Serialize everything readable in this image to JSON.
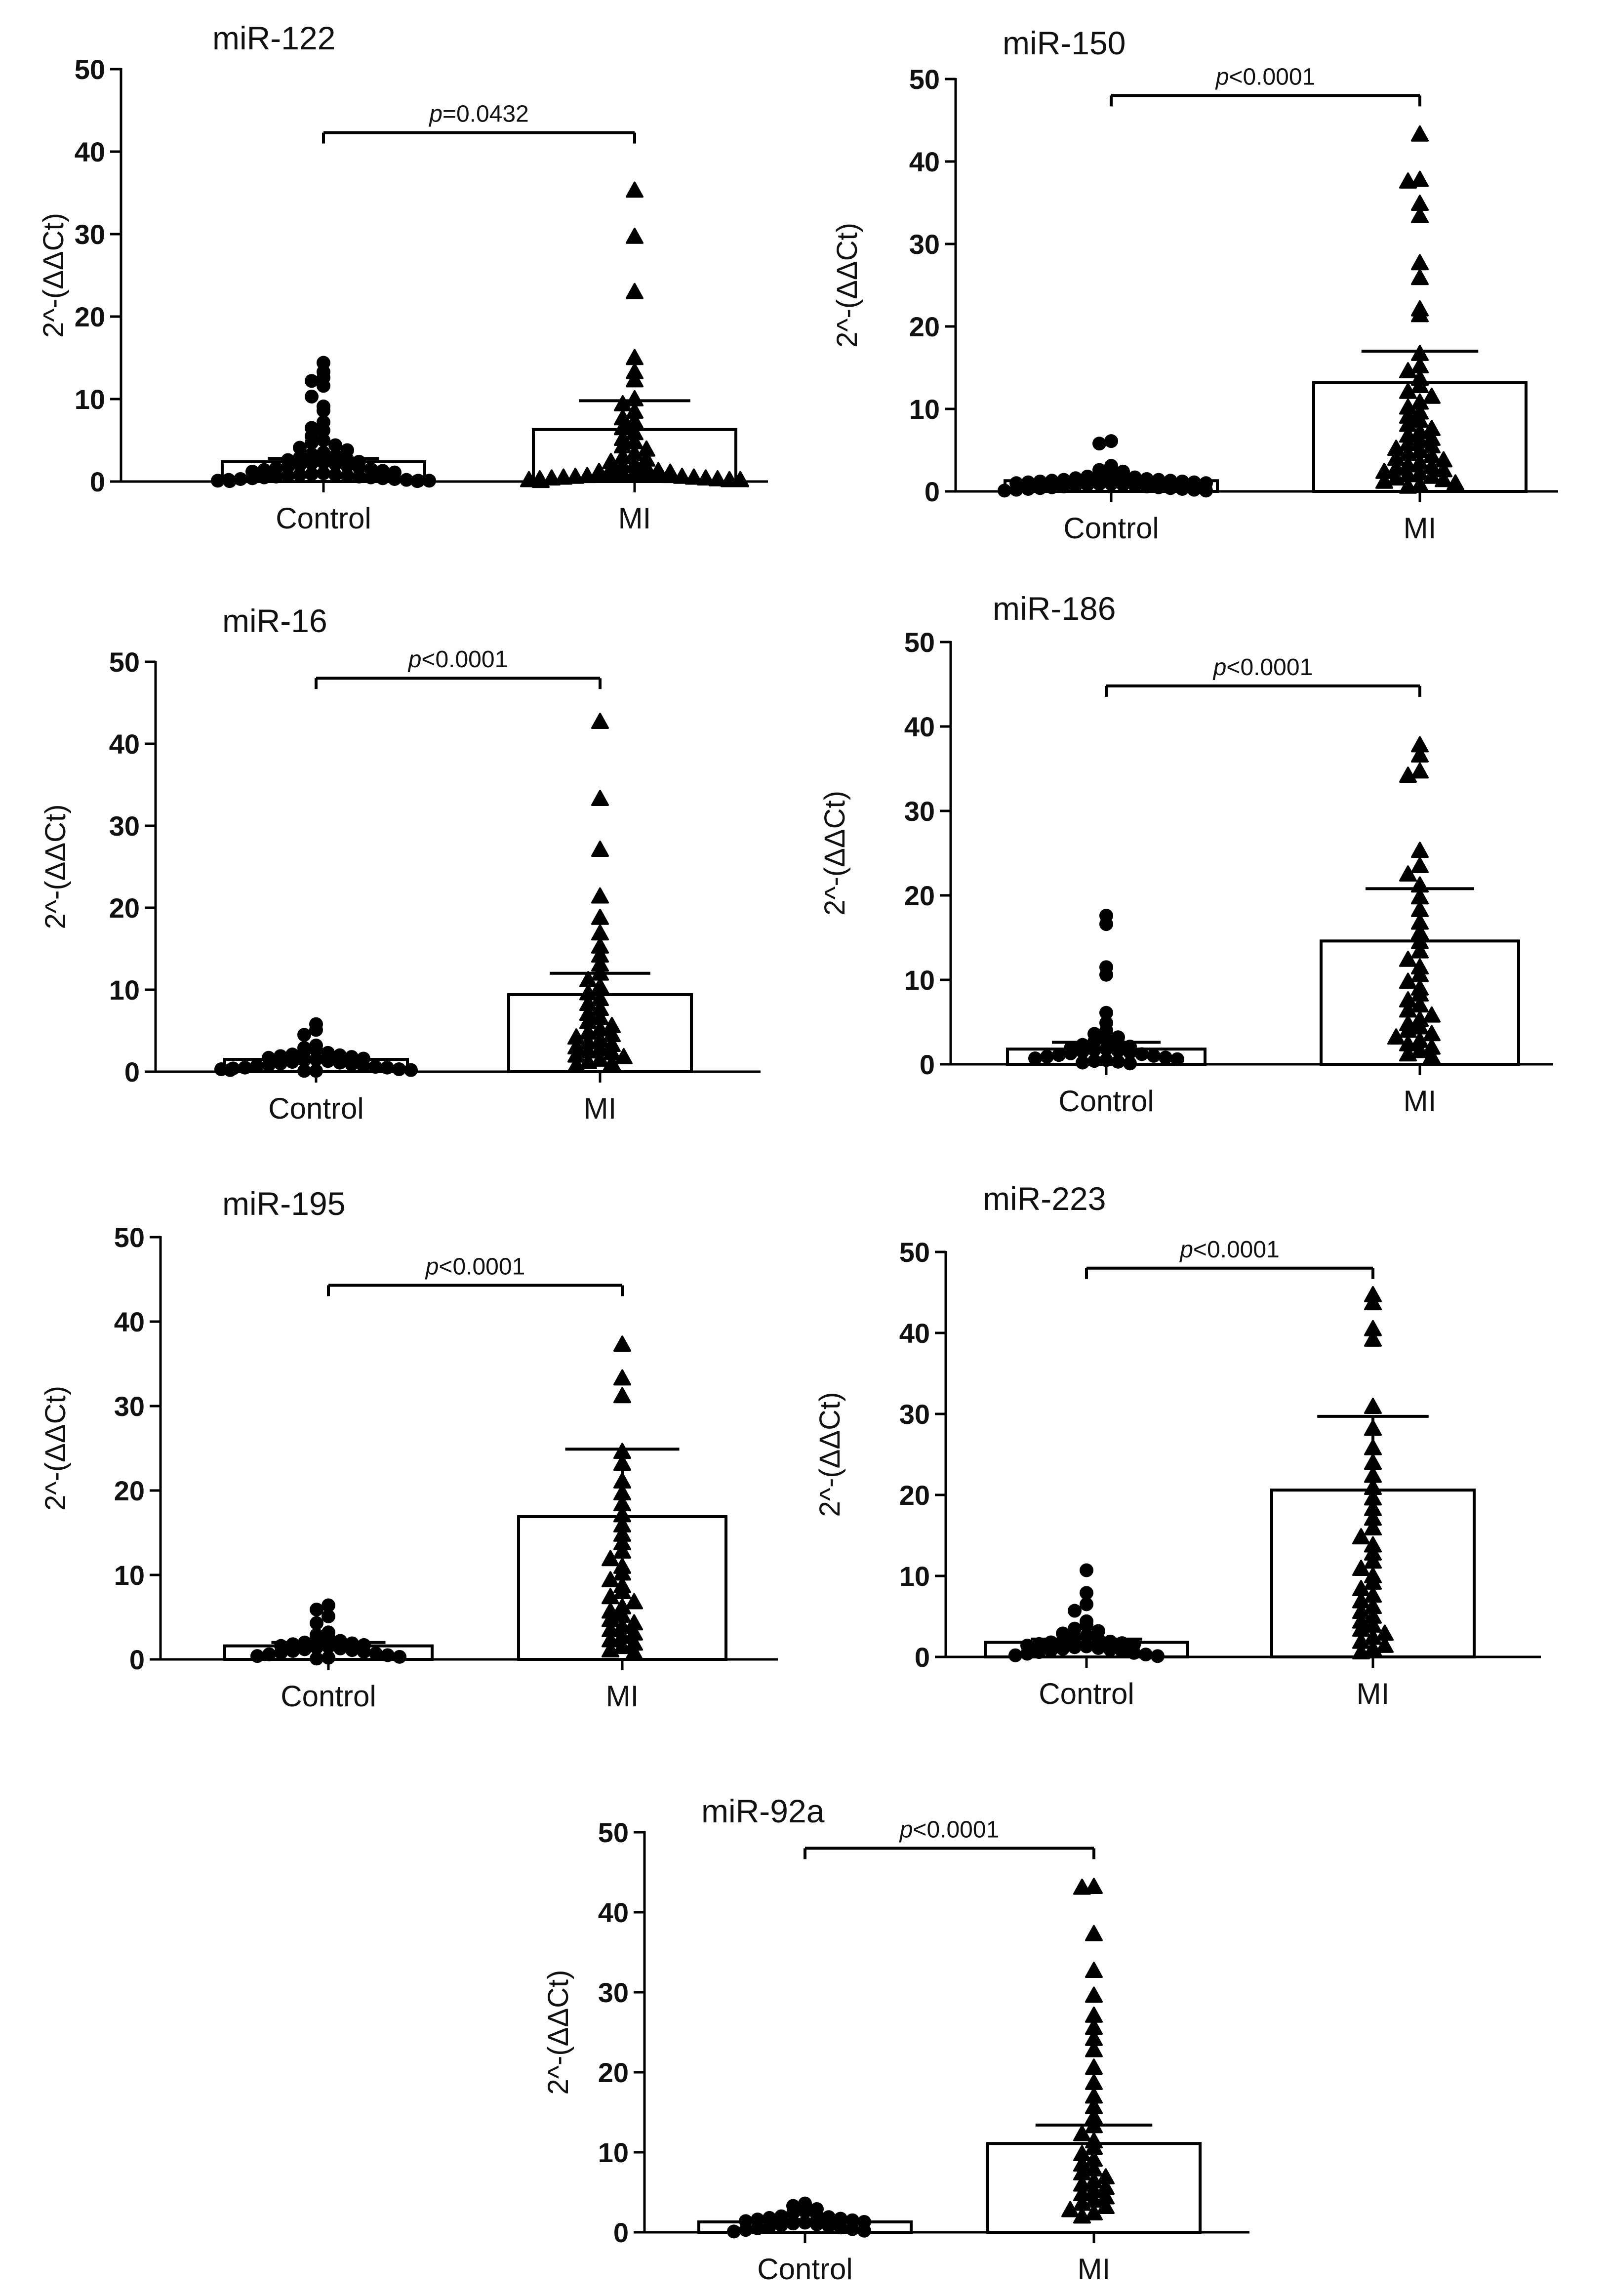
{
  "chart_data": [
    {
      "type": "bar",
      "title": "miR-122",
      "ylabel": "2^-(ΔΔCt)",
      "ylim": [
        0,
        50
      ],
      "yticks": [
        "0",
        "10",
        "20",
        "30",
        "40",
        "50"
      ],
      "categories": [
        "Control",
        "MI"
      ],
      "values": [
        2.4,
        6.3
      ],
      "errors": [
        0.4,
        3.5
      ],
      "p_label": "p",
      "p_value": "=0.0432",
      "points": [
        [
          14.4,
          13.3,
          12.6,
          12.2,
          11.6,
          10.3,
          9.1,
          8.6,
          7.2,
          6.5,
          6.2,
          5.5,
          5.0,
          4.7,
          4.4,
          4.1,
          3.8,
          3.5,
          3.3,
          3.1,
          2.9,
          2.7,
          2.6,
          2.4,
          2.3,
          2.2,
          2.1,
          2.0,
          1.9,
          1.8,
          1.7,
          1.6,
          1.5,
          1.4,
          1.3,
          1.2,
          1.1,
          1.0,
          0.9,
          0.8,
          0.8,
          0.7,
          0.7,
          0.6,
          0.6,
          0.5,
          0.5,
          0.4,
          0.4,
          0.3,
          0.3,
          0.2,
          0.2,
          0.1,
          0.1,
          0.1,
          0.05,
          0.05
        ],
        [
          35.3,
          29.7,
          23.0,
          15.0,
          13.3,
          12.3,
          10.0,
          9.4,
          8.5,
          7.7,
          7.3,
          6.5,
          5.9,
          5.2,
          4.8,
          4.3,
          3.9,
          3.4,
          3.0,
          2.7,
          2.4,
          2.1,
          1.9,
          1.7,
          1.5,
          1.3,
          1.2,
          1.1,
          1.0,
          1.0,
          0.9,
          0.9,
          0.8,
          0.8,
          0.7,
          0.7,
          0.6,
          0.6,
          0.5,
          0.5,
          0.4,
          0.4,
          0.3,
          0.3,
          0.2,
          0.2,
          0.2,
          0.1
        ]
      ]
    },
    {
      "type": "bar",
      "title": "miR-150",
      "ylabel": "2^-(ΔΔCt)",
      "ylim": [
        0,
        50
      ],
      "yticks": [
        "0",
        "10",
        "20",
        "30",
        "40",
        "50"
      ],
      "categories": [
        "Control",
        "MI"
      ],
      "values": [
        1.3,
        13.2
      ],
      "errors": [
        0.3,
        3.8
      ],
      "p_label": "p",
      "p_value": "<0.0001",
      "points": [
        [
          6.1,
          5.8,
          3.1,
          2.6,
          2.4,
          2.2,
          2.0,
          1.9,
          1.8,
          1.7,
          1.6,
          1.5,
          1.4,
          1.4,
          1.3,
          1.3,
          1.2,
          1.2,
          1.1,
          1.1,
          1.0,
          1.0,
          0.9,
          0.9,
          0.8,
          0.8,
          0.7,
          0.7,
          0.6,
          0.6,
          0.5,
          0.5,
          0.4,
          0.4,
          0.3,
          0.3,
          0.2,
          0.2,
          0.1,
          0.1
        ],
        [
          43.3,
          37.8,
          37.6,
          34.9,
          33.4,
          27.7,
          25.9,
          22.1,
          21.4,
          16.7,
          15.2,
          14.6,
          13.7,
          12.8,
          12.1,
          11.5,
          10.8,
          10.2,
          9.6,
          9.1,
          8.6,
          8.1,
          7.6,
          7.2,
          6.8,
          6.4,
          6.1,
          5.8,
          5.5,
          5.2,
          4.9,
          4.6,
          4.3,
          4.0,
          3.8,
          3.5,
          3.2,
          3.0,
          2.8,
          2.6,
          2.4,
          2.2,
          2.0,
          1.8,
          1.6,
          1.4,
          1.2,
          1.0,
          0.8,
          0.6
        ]
      ]
    },
    {
      "type": "bar",
      "title": "miR-16",
      "ylabel": "2^-(ΔΔCt)",
      "ylim": [
        0,
        50
      ],
      "yticks": [
        "0",
        "10",
        "20",
        "30",
        "40",
        "50"
      ],
      "categories": [
        "Control",
        "MI"
      ],
      "values": [
        1.5,
        9.4
      ],
      "errors": [
        0.3,
        2.6
      ],
      "p_label": "p",
      "p_value": "<0.0001",
      "points": [
        [
          5.8,
          5.1,
          4.5,
          3.2,
          2.9,
          2.7,
          2.5,
          2.3,
          2.1,
          2.0,
          1.9,
          1.8,
          1.7,
          1.6,
          1.5,
          1.4,
          1.3,
          1.2,
          1.1,
          1.0,
          0.9,
          0.8,
          0.7,
          0.7,
          0.6,
          0.5,
          0.5,
          0.4,
          0.3,
          0.3,
          0.2,
          0.2,
          0.1,
          0.1
        ],
        [
          42.7,
          33.3,
          27.1,
          21.4,
          18.8,
          16.9,
          15.3,
          14.2,
          13.1,
          12.0,
          11.2,
          10.4,
          9.6,
          8.9,
          8.3,
          7.7,
          7.1,
          6.6,
          6.1,
          5.6,
          5.2,
          4.8,
          4.5,
          4.2,
          3.9,
          3.6,
          3.3,
          3.0,
          2.8,
          2.5,
          2.3,
          2.0,
          1.8,
          1.5,
          1.2,
          1.0,
          0.8
        ]
      ]
    },
    {
      "type": "bar",
      "title": "miR-186",
      "ylabel": "2^-(ΔΔCt)",
      "ylim": [
        0,
        50
      ],
      "yticks": [
        "0",
        "10",
        "20",
        "30",
        "40",
        "50"
      ],
      "categories": [
        "Control",
        "MI"
      ],
      "values": [
        1.8,
        14.6
      ],
      "errors": [
        0.8,
        6.2
      ],
      "p_label": "p",
      "p_value": "<0.0001",
      "points": [
        [
          17.6,
          16.6,
          11.5,
          10.6,
          6.1,
          4.9,
          4.0,
          3.6,
          3.2,
          2.9,
          2.7,
          2.5,
          2.3,
          2.1,
          1.9,
          1.8,
          1.7,
          1.6,
          1.5,
          1.4,
          1.3,
          1.2,
          1.1,
          1.0,
          0.9,
          0.8,
          0.7,
          0.6,
          0.5,
          0.4,
          0.3,
          0.2,
          0.1
        ],
        [
          37.8,
          36.6,
          34.7,
          34.2,
          25.3,
          23.5,
          22.5,
          21.2,
          19.8,
          18.3,
          16.8,
          15.6,
          14.5,
          13.4,
          12.4,
          11.5,
          10.6,
          9.8,
          9.0,
          8.3,
          7.6,
          7.0,
          6.4,
          5.8,
          5.3,
          4.8,
          4.4,
          4.0,
          3.6,
          3.2,
          2.8,
          2.4,
          2.0,
          1.6,
          1.2,
          0.9
        ]
      ]
    },
    {
      "type": "bar",
      "title": "miR-195",
      "ylabel": "2^-(ΔΔCt)",
      "ylim": [
        0,
        50
      ],
      "yticks": [
        "0",
        "10",
        "20",
        "30",
        "40",
        "50"
      ],
      "categories": [
        "Control",
        "MI"
      ],
      "values": [
        1.6,
        16.9
      ],
      "errors": [
        0.4,
        8.0
      ],
      "p_label": "p",
      "p_value": "<0.0001",
      "points": [
        [
          6.4,
          5.9,
          5.1,
          4.3,
          3.2,
          2.9,
          2.6,
          2.4,
          2.2,
          2.0,
          1.9,
          1.8,
          1.7,
          1.6,
          1.5,
          1.4,
          1.3,
          1.2,
          1.1,
          1.0,
          0.9,
          0.8,
          0.7,
          0.6,
          0.5,
          0.4,
          0.3,
          0.2,
          0.1
        ],
        [
          37.3,
          33.3,
          31.2,
          24.6,
          23.2,
          21.1,
          19.7,
          18.4,
          17.1,
          15.9,
          14.8,
          13.8,
          12.8,
          11.9,
          11.0,
          10.2,
          9.4,
          8.7,
          8.0,
          7.4,
          6.8,
          6.2,
          5.7,
          5.2,
          4.7,
          4.3,
          3.9,
          3.5,
          3.1,
          2.7,
          2.3,
          1.9,
          1.5,
          1.1,
          0.8
        ]
      ]
    },
    {
      "type": "bar",
      "title": "miR-223",
      "ylabel": "2^-(ΔΔCt)",
      "ylim": [
        0,
        50
      ],
      "yticks": [
        "0",
        "10",
        "20",
        "30",
        "40",
        "50"
      ],
      "categories": [
        "Control",
        "MI"
      ],
      "values": [
        1.8,
        20.6
      ],
      "errors": [
        0.4,
        9.1
      ],
      "p_label": "p",
      "p_value": "<0.0001",
      "points": [
        [
          10.7,
          7.9,
          6.5,
          5.7,
          4.4,
          3.9,
          3.5,
          3.2,
          2.9,
          2.6,
          2.4,
          2.2,
          2.0,
          1.9,
          1.8,
          1.7,
          1.6,
          1.5,
          1.4,
          1.3,
          1.2,
          1.1,
          1.0,
          0.9,
          0.8,
          0.7,
          0.6,
          0.5,
          0.4,
          0.3,
          0.2,
          0.1
        ],
        [
          44.7,
          43.7,
          40.5,
          39.2,
          30.9,
          28.2,
          25.8,
          24.0,
          22.4,
          20.9,
          19.6,
          18.3,
          17.1,
          15.9,
          14.8,
          13.8,
          12.8,
          11.8,
          10.9,
          10.0,
          9.2,
          8.4,
          7.6,
          6.9,
          6.2,
          5.6,
          5.0,
          4.4,
          3.9,
          3.4,
          2.9,
          2.4,
          1.9,
          1.4,
          1.0,
          0.6
        ]
      ]
    },
    {
      "type": "bar",
      "title": "miR-92a",
      "ylabel": "2^-(ΔΔCt)",
      "ylim": [
        0,
        50
      ],
      "yticks": [
        "0",
        "10",
        "20",
        "30",
        "40",
        "50"
      ],
      "categories": [
        "Control",
        "MI"
      ],
      "values": [
        1.3,
        11.1
      ],
      "errors": [
        0.3,
        2.3
      ],
      "p_label": "p",
      "p_value": "<0.0001",
      "points": [
        [
          3.6,
          3.3,
          2.9,
          2.6,
          2.4,
          2.2,
          2.0,
          1.9,
          1.8,
          1.7,
          1.6,
          1.5,
          1.4,
          1.3,
          1.2,
          1.1,
          1.0,
          0.9,
          0.8,
          0.7,
          0.6,
          0.5,
          0.4,
          0.3,
          0.2,
          0.1
        ],
        [
          43.2,
          43.1,
          37.3,
          32.7,
          29.6,
          27.1,
          25.6,
          24.2,
          22.8,
          20.6,
          18.7,
          17.0,
          15.7,
          14.4,
          13.3,
          12.3,
          11.4,
          10.6,
          9.8,
          9.1,
          8.5,
          7.9,
          7.4,
          6.9,
          6.4,
          6.0,
          5.6,
          5.2,
          4.8,
          4.4,
          4.0,
          3.6,
          3.2,
          2.8,
          2.4,
          2.0
        ]
      ]
    }
  ]
}
